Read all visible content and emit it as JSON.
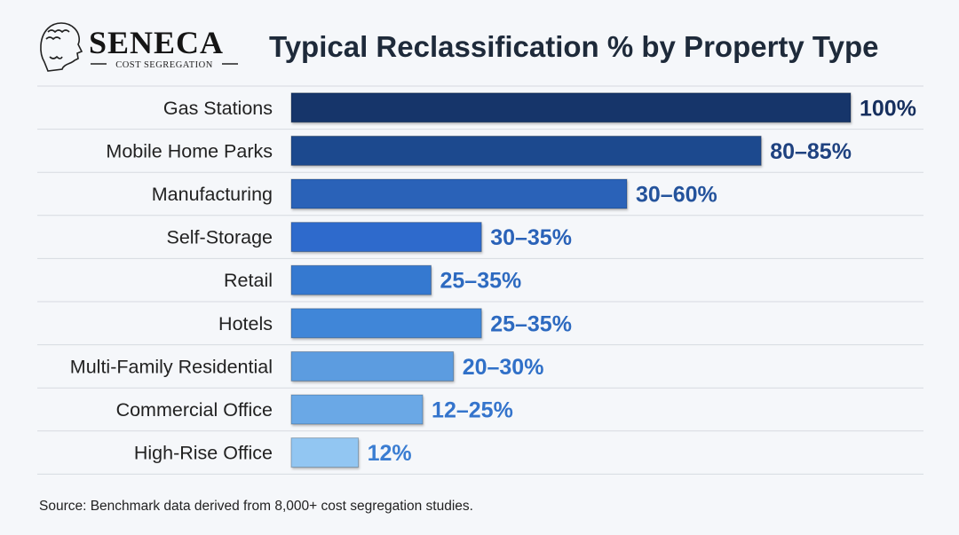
{
  "logo": {
    "name": "SENECA",
    "tagline": "COST SEGREGATION"
  },
  "chart_data": {
    "type": "bar",
    "orientation": "horizontal",
    "title": "Typical Reclassification % by Property Type",
    "categories": [
      "Gas Stations",
      "Mobile Home Parks",
      "Manufacturing",
      "Self-Storage",
      "Retail",
      "Hotels",
      "Multi-Family Residential",
      "Commercial Office",
      "High-Rise Office"
    ],
    "values": [
      100,
      84,
      60,
      34,
      25,
      34,
      29,
      23.5,
      12
    ],
    "data_labels": [
      "100%",
      "80–85%",
      "30–60%",
      "30–35%",
      "25–35%",
      "25–35%",
      "20–30%",
      "12–25%",
      "12%"
    ],
    "xlim": [
      0,
      100
    ],
    "grid": "horizontal row separators",
    "bar_colors": [
      "#12346a",
      "#1f4a8e",
      "#2a62b8",
      "#2e6bcc",
      "#3579d0",
      "#3f86d8",
      "#5c9ce0",
      "#6aa8e6",
      "#92c6f2"
    ],
    "label_colors": [
      "#162f5e",
      "#1f4280",
      "#24539c",
      "#2a62b8",
      "#2d6ac0",
      "#2d6ac0",
      "#3070c8",
      "#3474cc",
      "#3a7dd2"
    ]
  },
  "source": "Source: Benchmark data derived from 8,000+ cost segregation studies."
}
